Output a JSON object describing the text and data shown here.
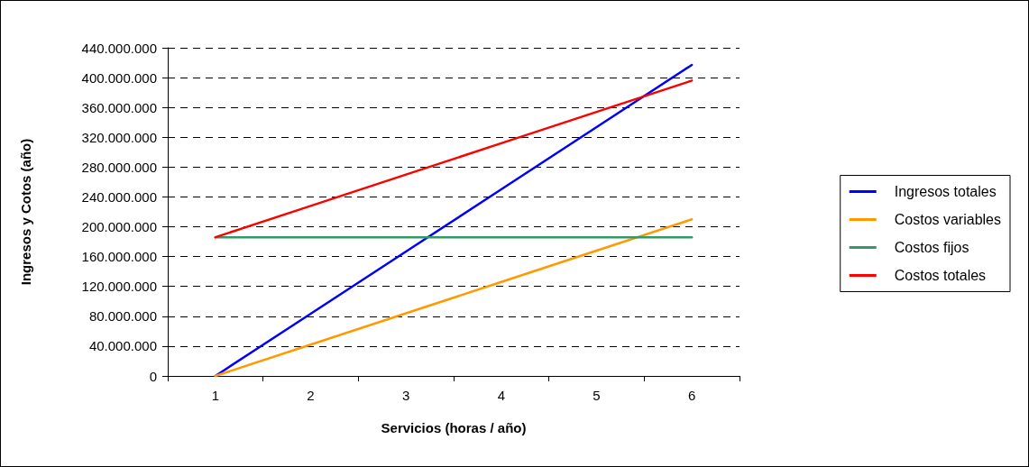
{
  "chart_data": {
    "type": "line",
    "xlabel": "Servicios (horas / año)",
    "ylabel": "Ingresos y Cotos (año)",
    "categories": [
      "1",
      "2",
      "3",
      "4",
      "5",
      "6"
    ],
    "series": [
      {
        "name": "Ingresos totales",
        "color": "#0000ff",
        "values": [
          0,
          83400000,
          166800000,
          250200000,
          333600000,
          417000000
        ]
      },
      {
        "name": "Costos variables",
        "color": "#ff9900",
        "values": [
          0,
          42000000,
          84000000,
          126000000,
          168000000,
          210000000
        ]
      },
      {
        "name": "Costos fijos",
        "color": "#339966",
        "values": [
          186000000,
          186000000,
          186000000,
          186000000,
          186000000,
          186000000
        ]
      },
      {
        "name": "Costos totales",
        "color": "#ff0000",
        "values": [
          186000000,
          228000000,
          270000000,
          312000000,
          354000000,
          396000000
        ]
      }
    ],
    "ylim": [
      0,
      440000000
    ],
    "yticks": [
      {
        "value": 0,
        "label": "0"
      },
      {
        "value": 40000000,
        "label": "40.000.000"
      },
      {
        "value": 80000000,
        "label": "80.000.000"
      },
      {
        "value": 120000000,
        "label": "120.000.000"
      },
      {
        "value": 160000000,
        "label": "160.000.000"
      },
      {
        "value": 200000000,
        "label": "200.000.000"
      },
      {
        "value": 240000000,
        "label": "240.000.000"
      },
      {
        "value": 280000000,
        "label": "280.000.000"
      },
      {
        "value": 320000000,
        "label": "320.000.000"
      },
      {
        "value": 360000000,
        "label": "360.000.000"
      },
      {
        "value": 400000000,
        "label": "400.000.000"
      },
      {
        "value": 440000000,
        "label": "440.000.000"
      }
    ],
    "grid": "y",
    "legend": "right",
    "marker": "none",
    "line_style": "solid"
  }
}
